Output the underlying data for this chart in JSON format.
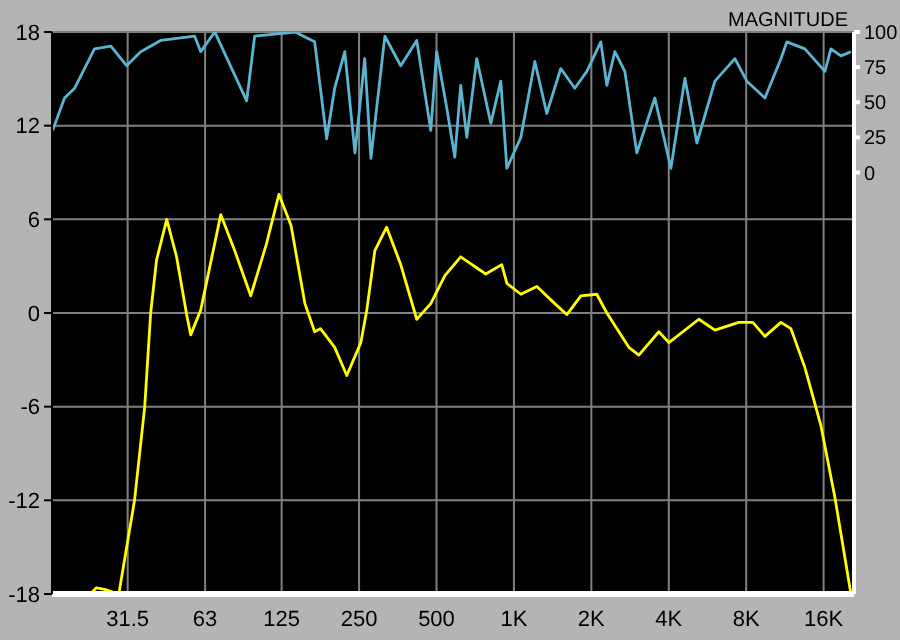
{
  "chart_data": {
    "type": "line",
    "y2label": "MAGNITUDE",
    "xlim": [
      16,
      21000
    ],
    "log": "x",
    "xticks": [
      31.5,
      63,
      125,
      250,
      500,
      {
        "value": 1000,
        "label": "1K"
      },
      {
        "value": 2000,
        "label": "2K"
      },
      {
        "value": 4000,
        "label": "4K"
      },
      {
        "value": 8000,
        "label": "8K"
      },
      {
        "value": 16000,
        "label": "16K"
      }
    ],
    "ylim": [
      -18,
      18
    ],
    "yticks": [
      -18,
      -12,
      -6,
      0,
      6,
      12,
      18
    ],
    "y2lim": [
      -300,
      100
    ],
    "y2ticks": [
      0,
      25,
      50,
      75,
      100
    ],
    "grid": true,
    "marker": "none",
    "line_style": "solid",
    "series": [
      {
        "color": "#ffff00",
        "x": [
          22.6,
          23.8,
          25.6,
          29.1,
          33.5,
          36.7,
          38.7,
          40.8,
          44.7,
          48.8,
          53.4,
          55.4,
          60.6,
          72.5,
          82.1,
          94.8,
          109,
          122,
          136,
          154,
          168,
          177,
          201,
          224,
          254,
          268,
          288,
          320,
          363,
          419,
          475,
          539,
          621,
          777,
          897,
          939,
          1064,
          1228,
          1442,
          1606,
          1821,
          2100,
          2298,
          2798,
          3060,
          3660,
          4004,
          5236,
          6045,
          7491,
          8492,
          9459,
          10918,
          11939,
          13532,
          15611,
          17697,
          20431
        ],
        "values": [
          -18,
          -17.6,
          -17.7,
          -18,
          -12,
          -6,
          0,
          3.4,
          6,
          3.6,
          -0.1,
          -1.4,
          0.2,
          6.3,
          4,
          1.1,
          4.4,
          7.6,
          5.6,
          0.6,
          -1.2,
          -1,
          -2.2,
          -4,
          -1.9,
          0.2,
          4,
          5.5,
          3.1,
          -0.4,
          0.6,
          2.4,
          3.6,
          2.5,
          3.1,
          1.9,
          1.2,
          1.7,
          0.6,
          -0.1,
          1.1,
          1.2,
          0,
          -2.2,
          -2.7,
          -1.2,
          -1.9,
          -0.4,
          -1.1,
          -0.6,
          -0.6,
          -1.5,
          -0.6,
          -1,
          -3.5,
          -7.2,
          -11.8,
          -18
        ]
      },
      {
        "color": "#5ab4d2",
        "axis": "y2",
        "x": [
          16.1,
          17.9,
          19.6,
          23.4,
          27.1,
          31.2,
          35.4,
          42.3,
          57.4,
          60.6,
          68.7,
          91.4,
          98.2,
          141,
          168,
          187,
          201,
          220,
          241,
          263,
          278,
          315,
          363,
          419,
          475,
          501,
          548,
          589,
          621,
          656,
          717,
          813,
          889,
          939,
          1064,
          1206,
          1342,
          1521,
          1725,
          1921,
          2177,
          2298,
          2468,
          2700,
          3005,
          3531,
          4076,
          4621,
          5144,
          6045,
          7229,
          8048,
          9459,
          10918,
          11516,
          13532,
          16185,
          17082,
          18686,
          20431
        ],
        "values": [
          30,
          53,
          60,
          88,
          90,
          76,
          86,
          94,
          97,
          86,
          100,
          51,
          97,
          100,
          93,
          24,
          60,
          86,
          14,
          81,
          10,
          97,
          76,
          94,
          30,
          86,
          46,
          11,
          62,
          25,
          81,
          35,
          65,
          3,
          25,
          79,
          42,
          74,
          60,
          72,
          93,
          62,
          86,
          72,
          14,
          53,
          3,
          67,
          21,
          65,
          81,
          65,
          53,
          81,
          93,
          88,
          72,
          88,
          83,
          86
        ]
      }
    ]
  }
}
